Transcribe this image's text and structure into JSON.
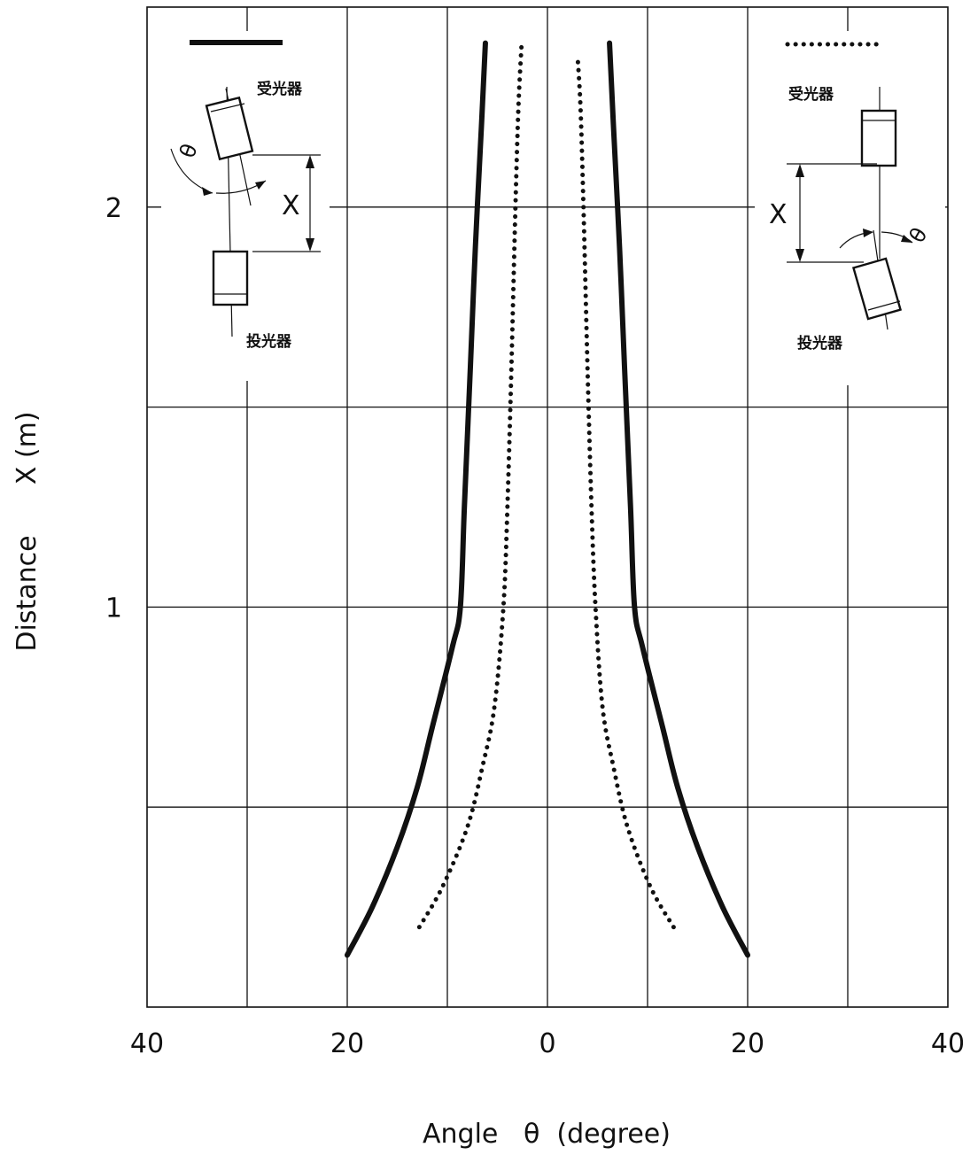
{
  "chart_data": {
    "type": "line",
    "xlabel": "Angle   θ  (degree)",
    "ylabel": "Distance      X (m)",
    "x_ticks": [
      "40",
      "20",
      "0",
      "20",
      "40"
    ],
    "y_ticks": [
      "1",
      "2"
    ],
    "xlim": [
      -40,
      40
    ],
    "ylim": [
      0,
      2.5
    ],
    "x_grid_step": 10,
    "y_grid_step": 0.5,
    "grid": true,
    "legend": {
      "solid": {
        "style": "solid",
        "position": "top-left",
        "receiver_label": "受光器",
        "emitter_label": "投光器",
        "distance_symbol": "X",
        "angle_symbol": "θ"
      },
      "dotted": {
        "style": "dotted",
        "position": "top-right",
        "receiver_label": "受光器",
        "emitter_label": "投光器",
        "distance_symbol": "X",
        "angle_symbol": "θ"
      }
    },
    "series": [
      {
        "style": "solid",
        "points": [
          [
            -20,
            0.13
          ],
          [
            -17.5,
            0.25
          ],
          [
            -15,
            0.4
          ],
          [
            -13,
            0.55
          ],
          [
            -11.5,
            0.7
          ],
          [
            -9.5,
            0.9
          ],
          [
            -8.7,
            1.0
          ],
          [
            -8.3,
            1.25
          ],
          [
            -7.7,
            1.6
          ],
          [
            -7.2,
            1.9
          ],
          [
            -6.6,
            2.2
          ],
          [
            -6.2,
            2.41
          ]
        ]
      },
      {
        "style": "solid",
        "points": [
          [
            20,
            0.13
          ],
          [
            17.5,
            0.25
          ],
          [
            15,
            0.4
          ],
          [
            13,
            0.55
          ],
          [
            11.5,
            0.7
          ],
          [
            9.5,
            0.9
          ],
          [
            8.7,
            1.0
          ],
          [
            8.3,
            1.25
          ],
          [
            7.7,
            1.6
          ],
          [
            7.2,
            1.9
          ],
          [
            6.6,
            2.2
          ],
          [
            6.2,
            2.41
          ]
        ]
      },
      {
        "style": "dotted",
        "points": [
          [
            -12.8,
            0.2
          ],
          [
            -10.5,
            0.3
          ],
          [
            -8,
            0.45
          ],
          [
            -6.5,
            0.6
          ],
          [
            -5.3,
            0.75
          ],
          [
            -4.4,
            1.0
          ],
          [
            -4.0,
            1.25
          ],
          [
            -3.6,
            1.6
          ],
          [
            -3.2,
            2.0
          ],
          [
            -2.9,
            2.25
          ],
          [
            -2.6,
            2.4
          ]
        ]
      },
      {
        "style": "dotted",
        "points": [
          [
            12.6,
            0.2
          ],
          [
            10.3,
            0.3
          ],
          [
            8.0,
            0.45
          ],
          [
            6.6,
            0.6
          ],
          [
            5.5,
            0.75
          ],
          [
            4.8,
            1.0
          ],
          [
            4.4,
            1.25
          ],
          [
            4.0,
            1.6
          ],
          [
            3.6,
            2.0
          ],
          [
            3.3,
            2.25
          ],
          [
            3.0,
            2.38
          ]
        ]
      }
    ]
  }
}
